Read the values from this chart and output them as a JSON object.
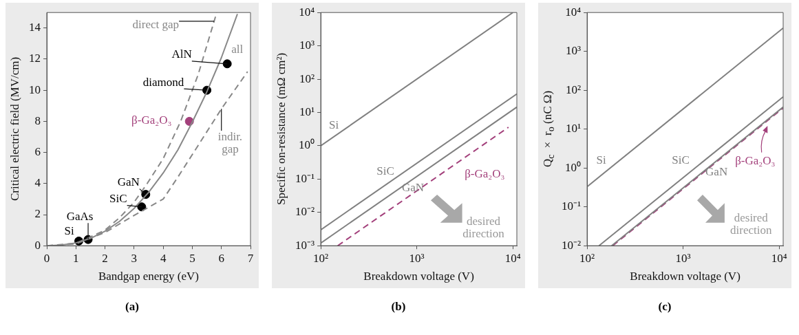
{
  "chart_data": [
    {
      "type": "line",
      "title": "(a)",
      "xlabel": "Bandgap energy (eV)",
      "ylabel": "Critical electric field (MV/cm)",
      "xlim": [
        0,
        7
      ],
      "ylim": [
        0,
        15
      ],
      "xticks": [
        0,
        1,
        2,
        3,
        4,
        5,
        6,
        7
      ],
      "yticks": [
        0,
        2,
        4,
        6,
        8,
        10,
        12,
        14
      ],
      "series": [
        {
          "name": "all",
          "color": "#888888",
          "marker": "none",
          "line_style": "solid",
          "x": [
            0,
            0.5,
            1,
            1.5,
            2,
            2.5,
            3,
            3.5,
            4,
            4.5,
            5,
            5.5,
            6,
            6.55
          ],
          "values": [
            0,
            0.04,
            0.18,
            0.47,
            0.93,
            1.57,
            2.4,
            3.43,
            4.68,
            6.15,
            7.95,
            9.9,
            12.1,
            14.9
          ]
        },
        {
          "name": "direct gap",
          "color": "#888888",
          "marker": "none",
          "line_style": "dashed",
          "x": [
            0,
            1,
            2,
            2.5,
            3,
            3.45,
            4,
            4.6,
            5.2,
            5.84
          ],
          "values": [
            0,
            0.15,
            1,
            1.8,
            2.8,
            4,
            5.6,
            8,
            11,
            15
          ]
        },
        {
          "name": "indir. gap",
          "color": "#888888",
          "marker": "none",
          "line_style": "dashed",
          "x": [
            0,
            1,
            2,
            3,
            4,
            4.5,
            5.2,
            6,
            6.9
          ],
          "values": [
            0,
            0.12,
            0.85,
            1.95,
            3,
            4.4,
            6.45,
            8.8,
            11.2
          ]
        },
        {
          "type": "scatter",
          "marker": "circle",
          "colors": [
            "#000000",
            "#000000",
            "#000000",
            "#000000",
            "#000000",
            "#000000",
            "#a3407b"
          ],
          "x": [
            1.1,
            1.42,
            3.26,
            3.4,
            5.5,
            6.2,
            4.9
          ],
          "values": [
            0.3,
            0.4,
            2.5,
            3.3,
            10,
            11.7,
            8
          ]
        }
      ],
      "annotations": [
        {
          "text": "Si",
          "x": 1.1,
          "y": 0.3
        },
        {
          "text": "GaAs",
          "x": 1.42,
          "y": 0.4
        },
        {
          "text": "SiC",
          "x": 3.26,
          "y": 2.5
        },
        {
          "text": "GaN",
          "x": 3.4,
          "y": 3.3
        },
        {
          "text": "diamond",
          "x": 5.5,
          "y": 10
        },
        {
          "text": "AlN",
          "x": 6.2,
          "y": 11.7
        },
        {
          "text": "β-Ga₂O₃",
          "x": 4.9,
          "y": 8
        }
      ]
    },
    {
      "type": "line",
      "title": "(b)",
      "xlabel": "Breakdown voltage (V)",
      "ylabel": "Specific on-resistance  (mΩ cm²)",
      "log": "xy",
      "xlim": [
        100,
        11000
      ],
      "ylim": [
        0.001,
        10000
      ],
      "xticks": [
        {
          "value": 100,
          "label": "10²"
        },
        {
          "value": 1000,
          "label": "10³"
        },
        {
          "value": 10000,
          "label": "10⁴"
        }
      ],
      "yticks": [
        {
          "value": 0.001,
          "label": "10⁻³"
        },
        {
          "value": 0.01,
          "label": "10⁻²"
        },
        {
          "value": 0.1,
          "label": "10⁻¹"
        },
        {
          "value": 1,
          "label": "10⁰"
        },
        {
          "value": 10,
          "label": "10¹"
        },
        {
          "value": 100,
          "label": "10²"
        },
        {
          "value": 1000,
          "label": "10³"
        },
        {
          "value": 10000,
          "label": "10⁴"
        }
      ],
      "series": [
        {
          "name": "Si",
          "color": "#808080",
          "marker": "none",
          "line_style": "solid",
          "x": [
            100,
            10000
          ],
          "values": [
            1,
            10000
          ]
        },
        {
          "name": "SiC",
          "color": "#808080",
          "marker": "none",
          "line_style": "solid",
          "x": [
            100,
            11000
          ],
          "values": [
            0.003,
            36
          ]
        },
        {
          "name": "GaN",
          "color": "#808080",
          "marker": "none",
          "line_style": "solid",
          "x": [
            100,
            11000
          ],
          "values": [
            0.0012,
            14.5
          ]
        },
        {
          "name": "β-Ga₂O₃",
          "color": "#a3407b",
          "marker": "none",
          "line_style": "dashed",
          "x": [
            150,
            9000
          ],
          "values": [
            0.001,
            3.6
          ]
        }
      ],
      "annotations": [
        "desired direction"
      ]
    },
    {
      "type": "line",
      "title": "(c)",
      "xlabel": "Breakdown voltage (V)",
      "ylabel": "Q$_{c}$ × r$_{o}$ (nC Ω)",
      "log": "xy",
      "xlim": [
        100,
        11000
      ],
      "ylim": [
        0.01,
        10000
      ],
      "xticks": [
        {
          "value": 100,
          "label": "10²"
        },
        {
          "value": 1000,
          "label": "10³"
        },
        {
          "value": 10000,
          "label": "10⁴"
        }
      ],
      "yticks": [
        {
          "value": 0.01,
          "label": "10⁻²"
        },
        {
          "value": 0.1,
          "label": "10⁻¹"
        },
        {
          "value": 1,
          "label": "10⁰"
        },
        {
          "value": 10,
          "label": "10¹"
        },
        {
          "value": 100,
          "label": "10²"
        },
        {
          "value": 1000,
          "label": "10³"
        },
        {
          "value": 10000,
          "label": "10⁴"
        }
      ],
      "series": [
        {
          "name": "Si",
          "color": "#808080",
          "marker": "none",
          "line_style": "solid",
          "x": [
            100,
            11000
          ],
          "values": [
            0.33,
            4000
          ]
        },
        {
          "name": "SiC",
          "color": "#808080",
          "marker": "none",
          "line_style": "solid",
          "x": [
            133,
            11000
          ],
          "values": [
            0.01,
            68
          ]
        },
        {
          "name": "GaN",
          "color": "#808080",
          "marker": "none",
          "line_style": "solid",
          "x": [
            180,
            11000
          ],
          "values": [
            0.01,
            37
          ]
        },
        {
          "name": "β-Ga₂O₃",
          "color": "#a3407b",
          "marker": "none",
          "line_style": "dashed",
          "x": [
            185,
            11000
          ],
          "values": [
            0.01,
            35
          ]
        }
      ],
      "annotations": [
        "desired direction"
      ]
    }
  ]
}
